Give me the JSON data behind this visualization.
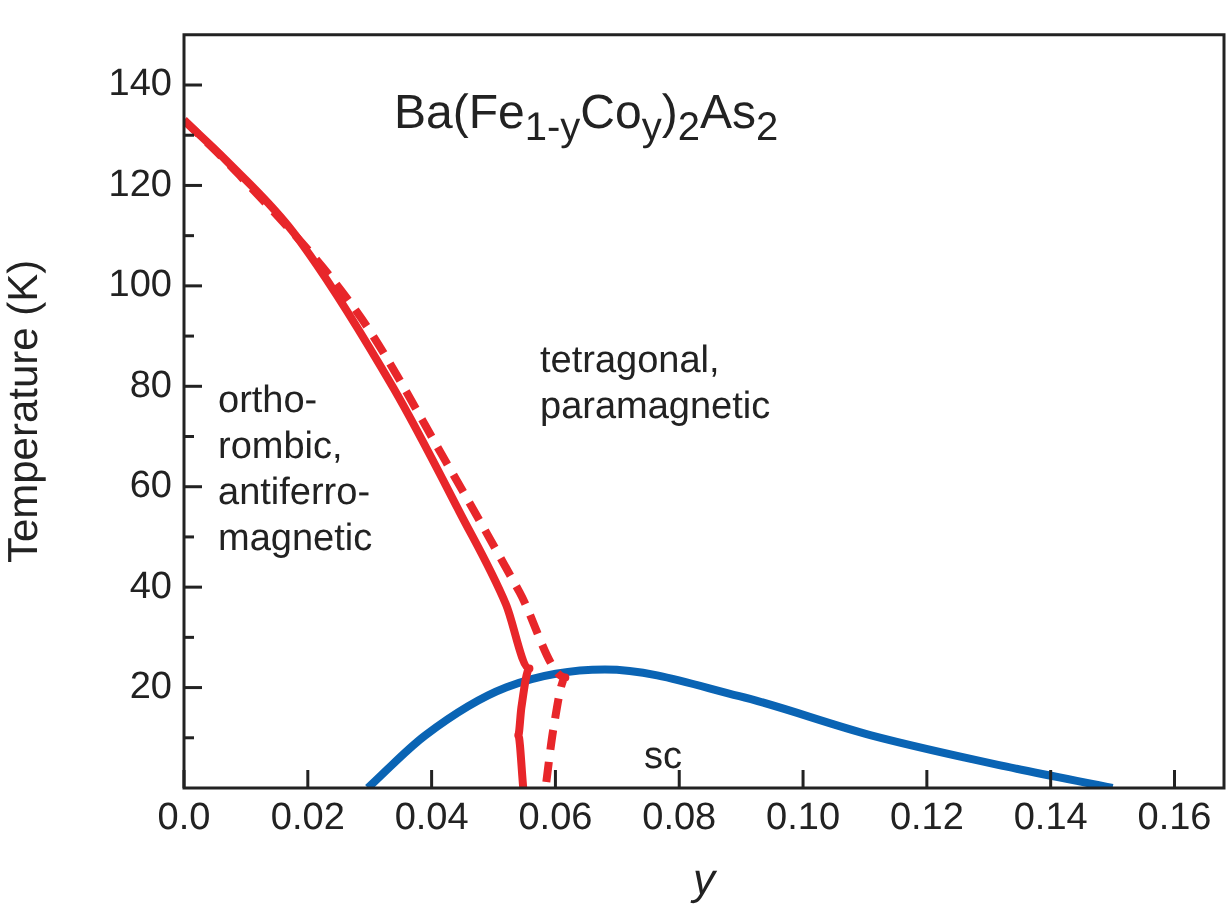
{
  "chart_data": {
    "type": "line",
    "title": "Ba(Fe$_{1-y}$Co$_{y}$)$_{2}$As$_{2}$",
    "xlabel": "y",
    "ylabel": "Temperature (K)",
    "xlim": [
      0,
      0.168
    ],
    "ylim": [
      0,
      150
    ],
    "xticks": [
      {
        "value": 0,
        "label": "0.0"
      },
      0.02,
      0.04,
      0.06,
      0.08,
      {
        "value": 0.1,
        "label": "0.10"
      },
      0.12,
      0.14,
      0.16
    ],
    "yticks": [
      {
        "value": 10,
        "label": null
      },
      20,
      {
        "value": 30,
        "label": null
      },
      40,
      {
        "value": 50,
        "label": null
      },
      60,
      {
        "value": 70,
        "label": null
      },
      80,
      {
        "value": 90,
        "label": null
      },
      100,
      {
        "value": 110,
        "label": null
      },
      120,
      {
        "value": 130,
        "label": null
      },
      140
    ],
    "grid": false,
    "legend": false,
    "marker": "none",
    "annotations": [
      "ortho-\nrombic,\nantiferro-\nmagnetic",
      "tetragonal,\nparamagnetic",
      "sc"
    ],
    "series": [
      {
        "color": "#e8262a",
        "line_style": "solid",
        "x": [
          0,
          0.0068,
          0.0177,
          0.0339,
          0.0445,
          0.052,
          0.0558,
          0.0545,
          0.054,
          0.0548
        ],
        "values": [
          133,
          125,
          110.6,
          79.5,
          55,
          36.6,
          23.8,
          16,
          10.5,
          0
        ]
      },
      {
        "color": "#e8262a",
        "line_style": "dashed",
        "x": [
          0,
          0.009,
          0.0284,
          0.0423,
          0.0542,
          0.0616,
          0.0597,
          0.0584
        ],
        "values": [
          133,
          122,
          94,
          65,
          39,
          22,
          12,
          0
        ]
      },
      {
        "color": "#0a64b4",
        "line_style": "solid",
        "x": [
          0.0297,
          0.039,
          0.052,
          0.068,
          0.0897,
          0.111,
          0.1327,
          0.15
        ],
        "values": [
          0,
          10.5,
          20,
          23.6,
          18.3,
          10.5,
          4.3,
          0
        ]
      }
    ]
  }
}
